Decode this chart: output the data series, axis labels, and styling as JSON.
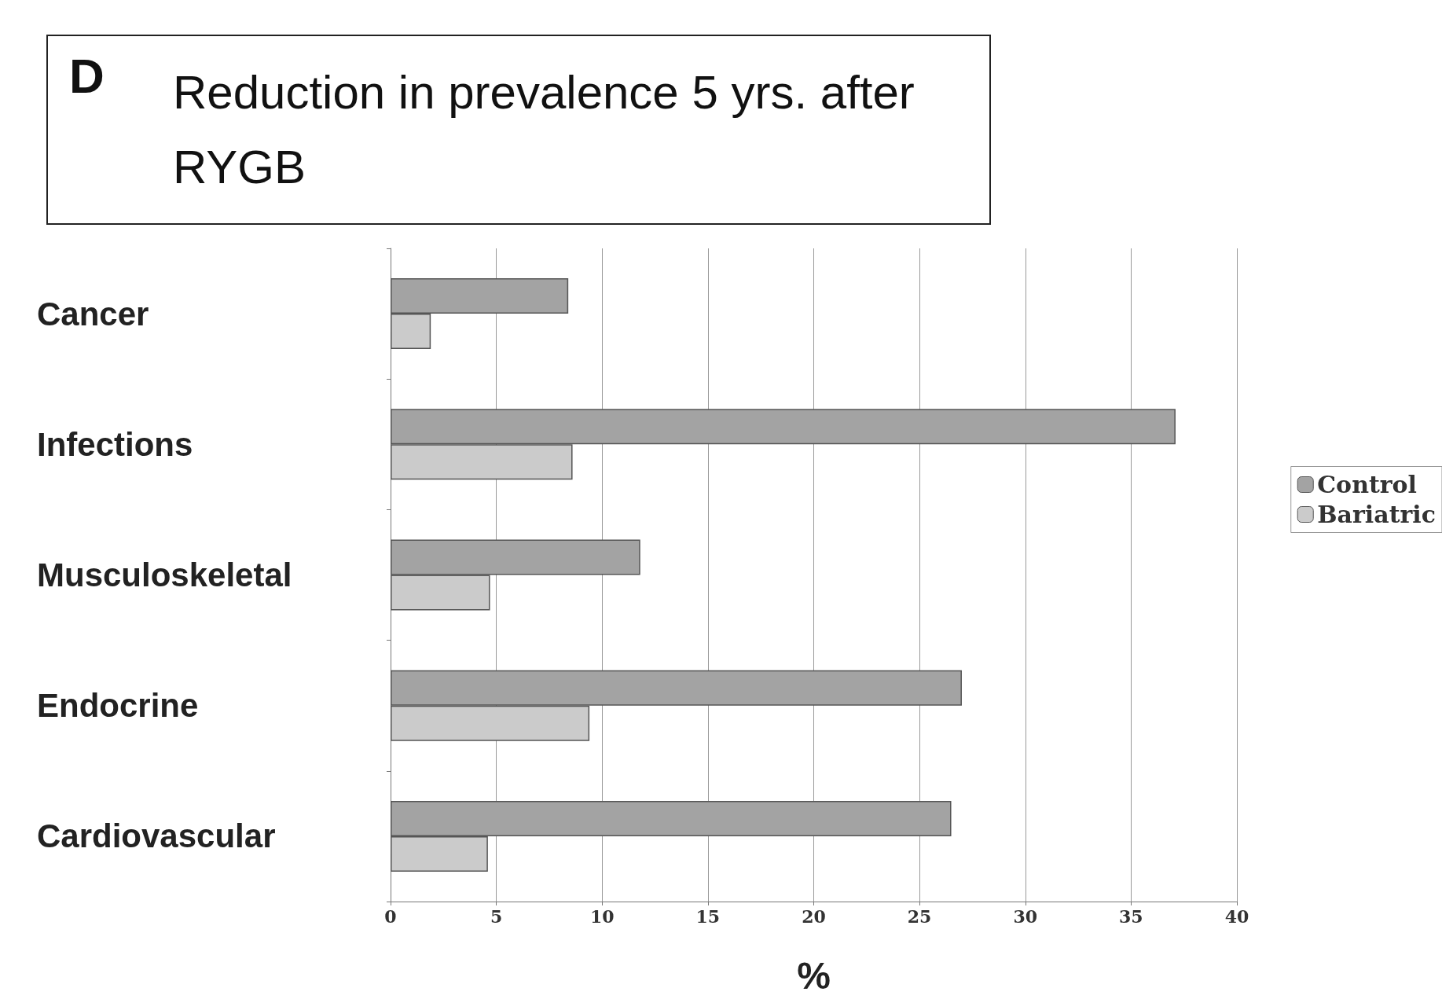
{
  "chart_data": {
    "type": "bar",
    "orientation": "horizontal",
    "title": "Reduction in prevalence 5 yrs. after RYGB",
    "annotations": [
      "D"
    ],
    "xlabel": "%",
    "categories": [
      "Cancer",
      "Infections",
      "Musculoskeletal",
      "Endocrine",
      "Cardiovascular"
    ],
    "series": [
      {
        "name": "Control",
        "color": "#a3a3a3",
        "values": [
          8.4,
          37.1,
          11.8,
          27.0,
          26.5
        ]
      },
      {
        "name": "Bariatric",
        "color": "#cbcbcb",
        "values": [
          1.9,
          8.6,
          4.7,
          9.4,
          4.6
        ]
      }
    ],
    "xlim": [
      0,
      40
    ],
    "xticks": [
      0,
      5,
      10,
      15,
      20,
      25,
      30,
      35,
      40
    ],
    "grid": "x",
    "legend": "right"
  }
}
